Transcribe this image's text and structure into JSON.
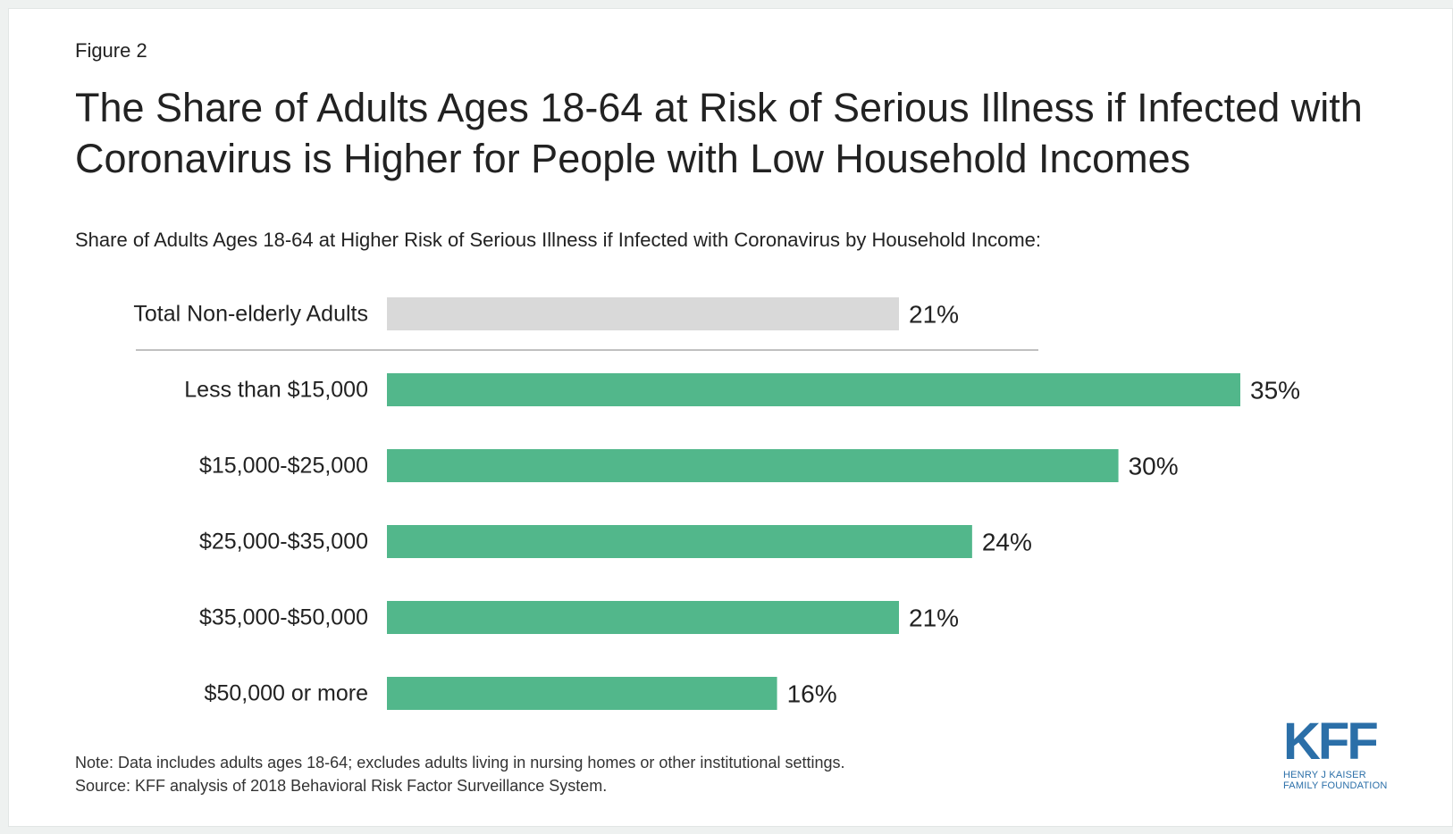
{
  "figure_label": "Figure 2",
  "title": "The Share of  Adults Ages 18-64 at Risk of Serious Illness if Infected with Coronavirus is Higher for People with Low Household Incomes",
  "subtitle": "Share of Adults Ages 18-64 at Higher Risk of Serious Illness if Infected with Coronavirus by Household Income:",
  "note": "Note: Data includes adults ages 18-64; excludes adults living in nursing homes or other institutional settings.",
  "source": "Source: KFF analysis of 2018 Behavioral Risk Factor Surveillance System.",
  "logo": {
    "mark": "KFF",
    "line1": "HENRY J KAISER",
    "line2": "FAMILY FOUNDATION",
    "color": "#2b6fa8"
  },
  "colors": {
    "total_bar": "#d9d9d9",
    "income_bar": "#52b78b",
    "separator": "#9a9a9a"
  },
  "chart_data": {
    "type": "bar",
    "orientation": "horizontal",
    "categories": [
      "Total Non-elderly Adults",
      "Less than $15,000",
      "$15,000-$25,000",
      "$25,000-$35,000",
      "$35,000-$50,000",
      "$50,000 or more"
    ],
    "values": [
      21,
      35,
      30,
      24,
      21,
      16
    ],
    "data_labels": [
      "21%",
      "35%",
      "30%",
      "24%",
      "21%",
      "16%"
    ],
    "unit": "%",
    "xlim": [
      0,
      35
    ],
    "grid": false,
    "legend": "none",
    "separator_after_index": 0
  }
}
